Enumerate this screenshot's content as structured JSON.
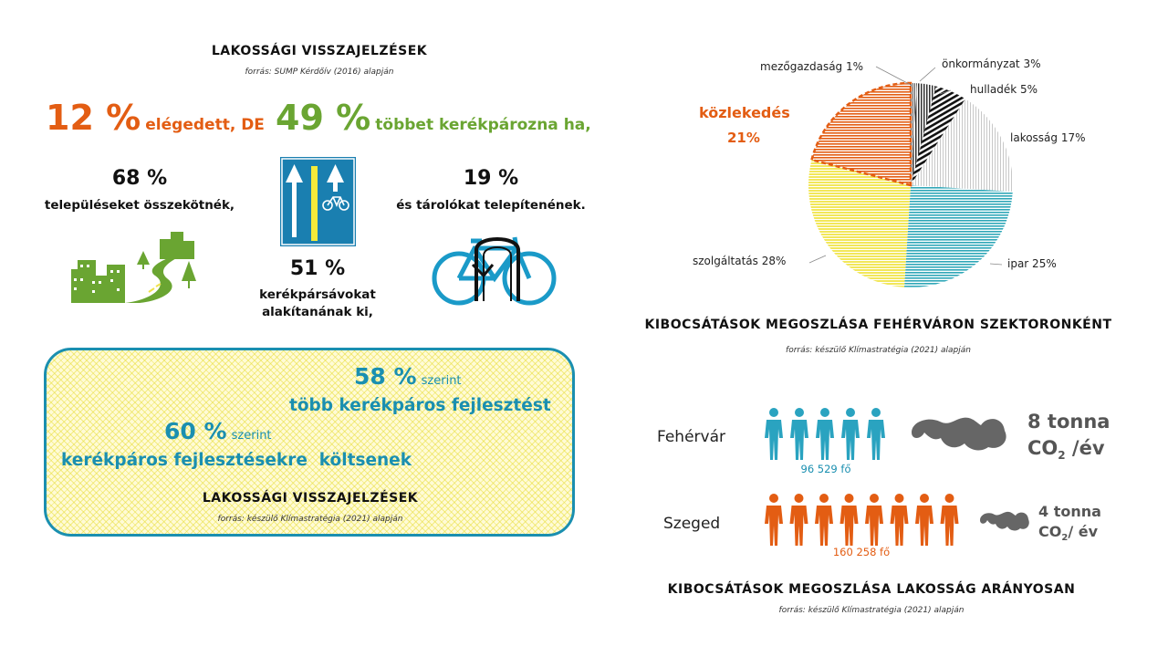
{
  "left": {
    "header": "LAKOSSÁGI VISSZAJELZÉSEK",
    "source": "forrás: SUMP Kérdőív (2016) alapján",
    "stat1": {
      "value": "12 %",
      "text": "elégedett, DE"
    },
    "stat2": {
      "value": "49 %",
      "text": "többet kerékpározna ha,"
    },
    "stat3": {
      "value": "68 %",
      "text": "településeket összekötnék,"
    },
    "stat4": {
      "value": "51 %",
      "text1": "kerékpársávokat",
      "text2": "alakítanának ki,"
    },
    "stat5": {
      "value": "19 %",
      "text": "és tárolókat telepítenének."
    },
    "box": {
      "stat1": {
        "value": "58 %",
        "suffix": "szerint",
        "text": "több kerékpáros fejlesztést"
      },
      "stat2": {
        "value": "60 %",
        "suffix": "szerint",
        "text": "kerékpáros fejlesztésekre  költsenek"
      },
      "header": "LAKOSSÁGI VISSZAJELZÉSEK",
      "source": "forrás: készülő Klímastratégia (2021) alapján"
    }
  },
  "right": {
    "pie_header": "KIBOCSÁTÁSOK MEGOSZLÁSA FEHÉRVÁRON SZEKTORONKÉNT",
    "pie_source": "forrás: készülő Klímastratégia (2021) alapján",
    "pie_labels": {
      "agri": "mezőgazdaság 1%",
      "gov": "önkormányzat 3%",
      "waste": "hulladék 5%",
      "pop": "lakosság 17%",
      "ind": "ipar 25%",
      "serv": "szolgáltatás 28%",
      "transport": "közlekedés",
      "transport_pct": "21%"
    },
    "cities": {
      "fehervar": {
        "name": "Fehérvár",
        "pop": "96 529 fő",
        "tonna": "8 tonna",
        "co2": "CO",
        "sub": "2",
        "per": " /év"
      },
      "szeged": {
        "name": "Szeged",
        "pop": "160 258 fő",
        "tonna": "4 tonna",
        "co2": "CO",
        "sub": "2",
        "per": "/ év"
      }
    },
    "bottom_header": "KIBOCSÁTÁSOK MEGOSZLÁSA LAKOSSÁG ARÁNYOSAN",
    "bottom_source": "forrás: készülő Klímastratégia (2021) alapján"
  },
  "chart_data": {
    "type": "pie",
    "categories": [
      "mezőgazdaság",
      "önkormányzat",
      "hulladék",
      "lakosság",
      "ipar",
      "szolgáltatás",
      "közlekedés"
    ],
    "values": [
      1,
      3,
      5,
      17,
      25,
      28,
      21
    ],
    "title": "KIBOCSÁTÁSOK MEGOSZLÁSA FEHÉRVÁRON SZEKTORONKÉNT"
  },
  "colors": {
    "orange": "#e35d13",
    "green": "#6aa532",
    "teal": "#1a8fb0",
    "yellow": "#f5ea5a",
    "grey": "#666666",
    "blue_sign": "#1a7fb0"
  }
}
